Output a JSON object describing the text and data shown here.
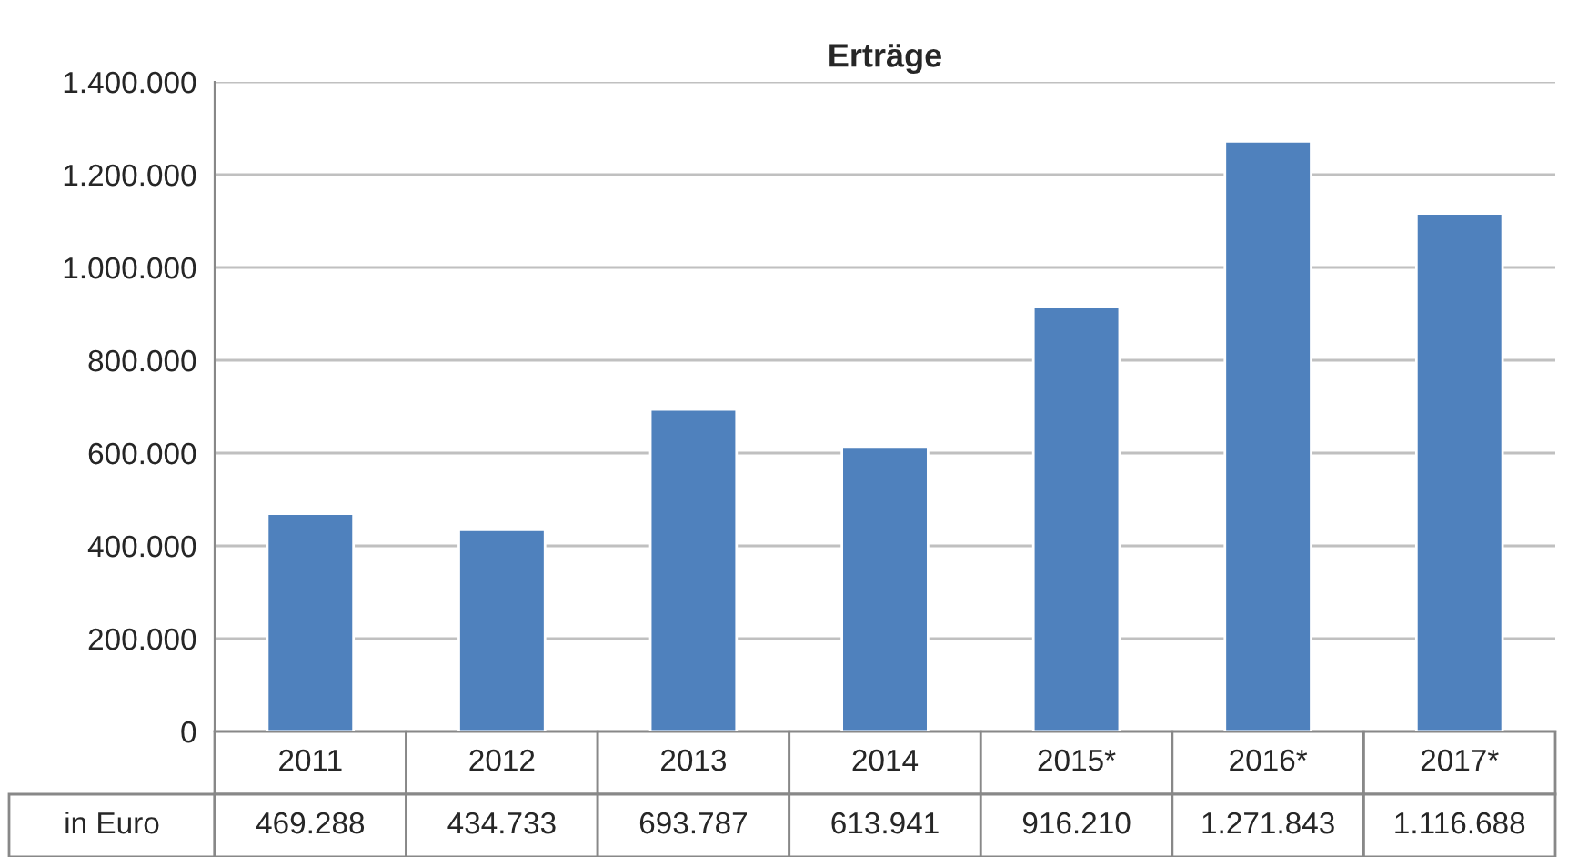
{
  "chart_data": {
    "type": "bar",
    "title": "Erträge",
    "categories": [
      "2011",
      "2012",
      "2013",
      "2014",
      "2015*",
      "2016*",
      "2017*"
    ],
    "series": [
      {
        "name": "in Euro",
        "color": "#4f81bd",
        "values": [
          469288,
          434733,
          693787,
          613941,
          916210,
          1271843,
          1116688
        ],
        "value_labels": [
          "469.288",
          "434.733",
          "693.787",
          "613.941",
          "916.210",
          "1.271.843",
          "1.116.688"
        ]
      }
    ],
    "ylim": [
      0,
      1400000
    ],
    "yticks": [
      {
        "value": 0,
        "label": "0"
      },
      {
        "value": 200000,
        "label": "200.000"
      },
      {
        "value": 400000,
        "label": "400.000"
      },
      {
        "value": 600000,
        "label": "600.000"
      },
      {
        "value": 800000,
        "label": "800.000"
      },
      {
        "value": 1000000,
        "label": "1.000.000"
      },
      {
        "value": 1200000,
        "label": "1.200.000"
      },
      {
        "value": 1400000,
        "label": "1.400.000"
      }
    ],
    "grid": "y"
  }
}
